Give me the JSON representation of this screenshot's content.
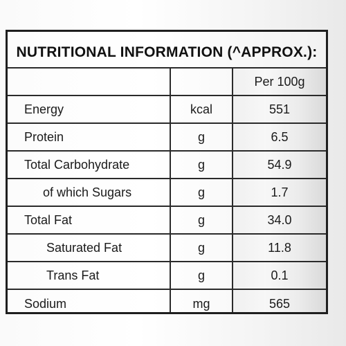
{
  "title": "NUTRITIONAL INFORMATION (^APPROX.):",
  "header": {
    "nutrient": "",
    "unit": "",
    "value": "Per 100g"
  },
  "rows": [
    {
      "nutrient": "Energy",
      "unit": "kcal",
      "value": "551"
    },
    {
      "nutrient": "Protein",
      "unit": "g",
      "value": "6.5"
    },
    {
      "nutrient": "Total Carbohydrate",
      "unit": "g",
      "value": "54.9"
    },
    {
      "nutrient": "of which Sugars",
      "unit": "g",
      "value": "1.7"
    },
    {
      "nutrient": "Total Fat",
      "unit": "g",
      "value": "34.0"
    },
    {
      "nutrient": "Saturated Fat",
      "unit": "g",
      "value": "11.8"
    },
    {
      "nutrient": "Trans Fat",
      "unit": "g",
      "value": "0.1"
    },
    {
      "nutrient": "Sodium",
      "unit": "mg",
      "value": "565"
    }
  ],
  "colors": {
    "border": "#1e1e1e",
    "text": "#1a1a1a",
    "shade": "#ececec"
  }
}
